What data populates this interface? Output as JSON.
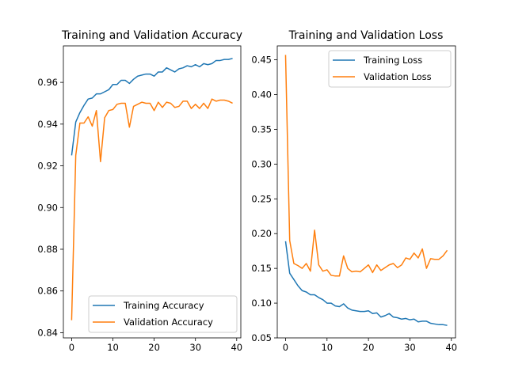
{
  "colors": {
    "training": "#1f77b4",
    "validation": "#ff7f0e",
    "axis": "#000000",
    "legend_border": "#cccccc"
  },
  "chart_data": [
    {
      "type": "line",
      "title": "Training and Validation Accuracy",
      "xlabel": "",
      "ylabel": "",
      "xlim": [
        -2,
        41
      ],
      "ylim": [
        0.8375,
        0.9775
      ],
      "xticks": [
        0,
        10,
        20,
        30,
        40
      ],
      "xtick_labels": [
        "0",
        "10",
        "20",
        "30",
        "40"
      ],
      "yticks": [
        0.84,
        0.86,
        0.88,
        0.9,
        0.92,
        0.94,
        0.96
      ],
      "ytick_labels": [
        "0.84",
        "0.86",
        "0.88",
        "0.90",
        "0.92",
        "0.94",
        "0.96"
      ],
      "legend_position": "lower-right",
      "x": [
        0,
        1,
        2,
        3,
        4,
        5,
        6,
        7,
        8,
        9,
        10,
        11,
        12,
        13,
        14,
        15,
        16,
        17,
        18,
        19,
        20,
        21,
        22,
        23,
        24,
        25,
        26,
        27,
        28,
        29,
        30,
        31,
        32,
        33,
        34,
        35,
        36,
        37,
        38,
        39
      ],
      "series": [
        {
          "name": "Training Accuracy",
          "color_key": "training",
          "values": [
            0.925,
            0.941,
            0.9455,
            0.949,
            0.952,
            0.9525,
            0.9545,
            0.9545,
            0.9555,
            0.9565,
            0.959,
            0.959,
            0.961,
            0.961,
            0.9595,
            0.9615,
            0.963,
            0.9635,
            0.964,
            0.964,
            0.963,
            0.965,
            0.965,
            0.967,
            0.966,
            0.965,
            0.9665,
            0.967,
            0.968,
            0.9675,
            0.9685,
            0.9675,
            0.969,
            0.9685,
            0.969,
            0.9705,
            0.9705,
            0.971,
            0.971,
            0.9715
          ]
        },
        {
          "name": "Validation Accuracy",
          "color_key": "validation",
          "values": [
            0.846,
            0.925,
            0.9405,
            0.9405,
            0.9435,
            0.939,
            0.9465,
            0.922,
            0.943,
            0.9465,
            0.947,
            0.9495,
            0.95,
            0.95,
            0.9385,
            0.9485,
            0.9495,
            0.9505,
            0.95,
            0.95,
            0.9465,
            0.9505,
            0.948,
            0.9505,
            0.95,
            0.948,
            0.9485,
            0.951,
            0.951,
            0.9475,
            0.9495,
            0.9475,
            0.95,
            0.9475,
            0.952,
            0.951,
            0.9515,
            0.9515,
            0.951,
            0.95
          ]
        }
      ]
    },
    {
      "type": "line",
      "title": "Training and Validation Loss",
      "xlabel": "",
      "ylabel": "",
      "xlim": [
        -2,
        41
      ],
      "ylim": [
        0.05,
        0.47
      ],
      "xticks": [
        0,
        10,
        20,
        30,
        40
      ],
      "xtick_labels": [
        "0",
        "10",
        "20",
        "30",
        "40"
      ],
      "yticks": [
        0.05,
        0.1,
        0.15,
        0.2,
        0.25,
        0.3,
        0.35,
        0.4,
        0.45
      ],
      "ytick_labels": [
        "0.05",
        "0.10",
        "0.15",
        "0.20",
        "0.25",
        "0.30",
        "0.35",
        "0.40",
        "0.45"
      ],
      "legend_position": "top-right",
      "x": [
        0,
        1,
        2,
        3,
        4,
        5,
        6,
        7,
        8,
        9,
        10,
        11,
        12,
        13,
        14,
        15,
        16,
        17,
        18,
        19,
        20,
        21,
        22,
        23,
        24,
        25,
        26,
        27,
        28,
        29,
        30,
        31,
        32,
        33,
        34,
        35,
        36,
        37,
        38,
        39
      ],
      "series": [
        {
          "name": "Training Loss",
          "color_key": "training",
          "values": [
            0.189,
            0.143,
            0.134,
            0.125,
            0.118,
            0.116,
            0.112,
            0.112,
            0.108,
            0.105,
            0.1,
            0.1,
            0.096,
            0.095,
            0.099,
            0.093,
            0.09,
            0.089,
            0.088,
            0.088,
            0.089,
            0.085,
            0.086,
            0.08,
            0.082,
            0.085,
            0.08,
            0.079,
            0.077,
            0.078,
            0.076,
            0.077,
            0.073,
            0.074,
            0.074,
            0.071,
            0.07,
            0.069,
            0.069,
            0.068
          ]
        },
        {
          "name": "Validation Loss",
          "color_key": "validation",
          "values": [
            0.457,
            0.19,
            0.157,
            0.154,
            0.15,
            0.157,
            0.146,
            0.205,
            0.155,
            0.146,
            0.148,
            0.14,
            0.139,
            0.139,
            0.168,
            0.15,
            0.145,
            0.146,
            0.145,
            0.15,
            0.155,
            0.144,
            0.155,
            0.147,
            0.151,
            0.155,
            0.157,
            0.151,
            0.155,
            0.165,
            0.163,
            0.172,
            0.165,
            0.178,
            0.15,
            0.164,
            0.163,
            0.163,
            0.168,
            0.176
          ]
        }
      ]
    }
  ]
}
